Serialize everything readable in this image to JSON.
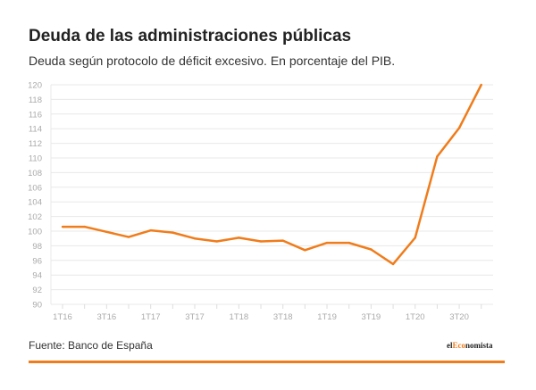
{
  "chart_data": {
    "type": "line",
    "title": "Deuda de las administraciones públicas",
    "subtitle": "Deuda según protocolo de déficit excesivo. En porcentaje del PIB.",
    "xlabel": "",
    "ylabel": "",
    "categories": [
      "1T16",
      "2T16",
      "3T16",
      "4T16",
      "1T17",
      "2T17",
      "3T17",
      "4T17",
      "1T18",
      "2T18",
      "3T18",
      "4T18",
      "1T19",
      "2T19",
      "3T19",
      "4T19",
      "1T20",
      "2T20",
      "3T20",
      "4T20"
    ],
    "x_tick_labels": [
      "1T16",
      "3T16",
      "1T17",
      "3T17",
      "1T18",
      "3T18",
      "1T19",
      "3T19",
      "1T20",
      "3T20"
    ],
    "series": [
      {
        "name": "Deuda",
        "color": "#f07c1b",
        "values": [
          100.6,
          100.6,
          99.9,
          99.2,
          100.1,
          99.8,
          99.0,
          98.6,
          99.1,
          98.6,
          98.7,
          97.4,
          98.4,
          98.4,
          97.5,
          95.5,
          99.1,
          110.2,
          114.1,
          120.0
        ]
      }
    ],
    "ylim": [
      90,
      120
    ],
    "y_ticks": [
      90,
      92,
      94,
      96,
      98,
      100,
      102,
      104,
      106,
      108,
      110,
      112,
      114,
      116,
      118,
      120
    ],
    "grid": true
  },
  "footer": {
    "source": "Fuente: Banco de España",
    "logo_pre": "el",
    "logo_mid": "Eco",
    "logo_post": "nomista"
  }
}
